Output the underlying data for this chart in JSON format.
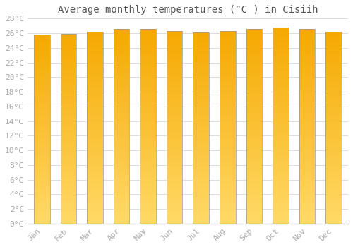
{
  "title": "Average monthly temperatures (°C ) in Cisiih",
  "months": [
    "Jan",
    "Feb",
    "Mar",
    "Apr",
    "May",
    "Jun",
    "Jul",
    "Aug",
    "Sep",
    "Oct",
    "Nov",
    "Dec"
  ],
  "values": [
    25.8,
    25.9,
    26.2,
    26.6,
    26.6,
    26.3,
    26.1,
    26.3,
    26.6,
    26.8,
    26.6,
    26.2
  ],
  "bar_color_top": "#F5A800",
  "bar_color_bottom": "#FFD966",
  "bar_edge_color": "#999999",
  "ylim": [
    0,
    28
  ],
  "yticks": [
    0,
    2,
    4,
    6,
    8,
    10,
    12,
    14,
    16,
    18,
    20,
    22,
    24,
    26,
    28
  ],
  "ytick_labels": [
    "0°C",
    "2°C",
    "4°C",
    "6°C",
    "8°C",
    "10°C",
    "12°C",
    "14°C",
    "16°C",
    "18°C",
    "20°C",
    "22°C",
    "24°C",
    "26°C",
    "28°C"
  ],
  "background_color": "#ffffff",
  "grid_color": "#dddddd",
  "title_fontsize": 10,
  "tick_fontsize": 8,
  "title_color": "#555555",
  "tick_color": "#aaaaaa",
  "font_family": "monospace",
  "bar_width": 0.6,
  "num_gradient_steps": 100
}
